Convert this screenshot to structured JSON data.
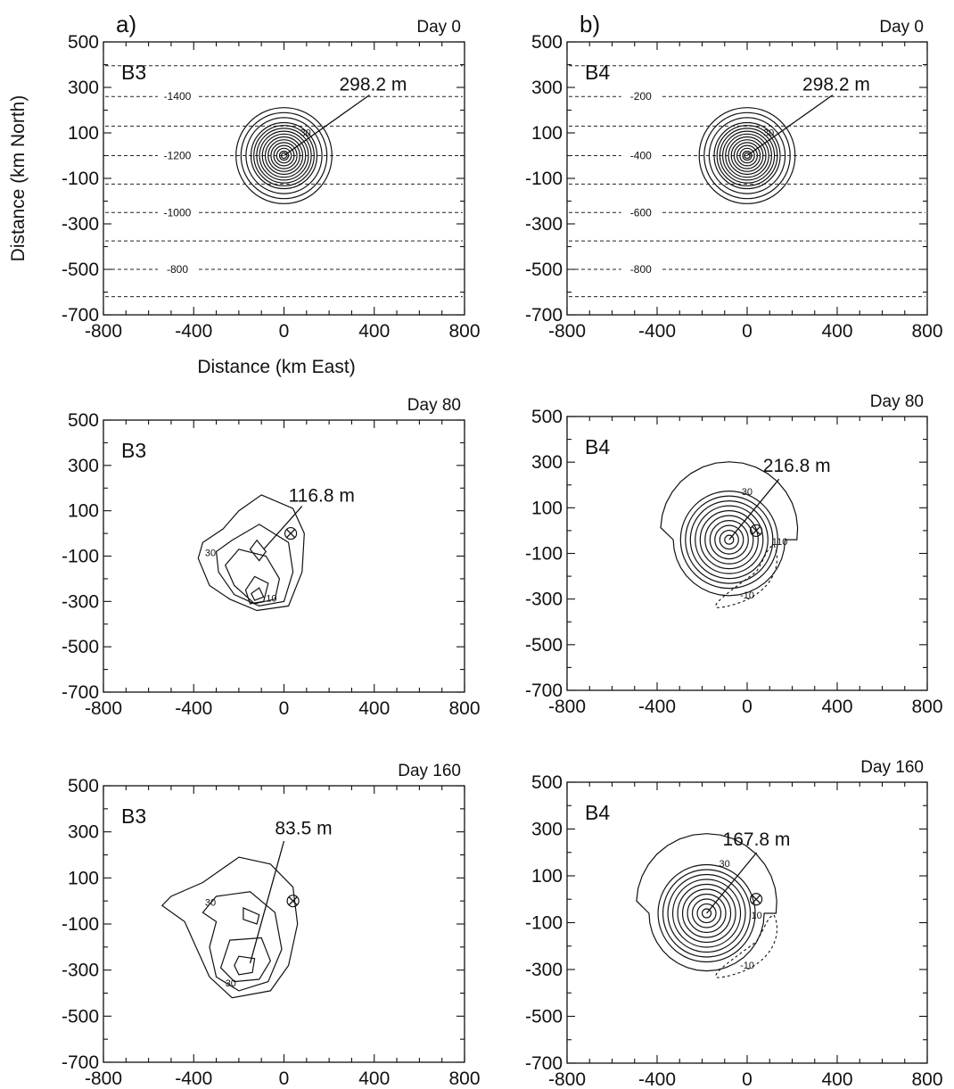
{
  "figure": {
    "column_tags": [
      "a)",
      "b)"
    ],
    "ylabel": "Distance (km North)",
    "xlabel": "Distance (km East)"
  },
  "chart_data": [
    {
      "type": "contour",
      "experiment": "B3",
      "day": "Day 0",
      "xlim": [
        -800,
        800
      ],
      "ylim": [
        -700,
        500
      ],
      "x_ticks": [
        -800,
        -400,
        0,
        400,
        800
      ],
      "y_ticks": [
        500,
        300,
        100,
        -100,
        -300,
        -500,
        -700
      ],
      "annotation": "298.2 m",
      "center": [
        0,
        0
      ],
      "topography_levels": [
        {
          "label": "-1400",
          "y": 260
        },
        {
          "label": "-1200",
          "y": 0
        },
        {
          "label": "-1000",
          "y": -250
        },
        {
          "label": "-800",
          "y": -500
        }
      ],
      "contour_label": "30"
    },
    {
      "type": "contour",
      "experiment": "B4",
      "day": "Day 0",
      "xlim": [
        -800,
        800
      ],
      "ylim": [
        -700,
        500
      ],
      "x_ticks": [
        -800,
        -400,
        0,
        400,
        800
      ],
      "y_ticks": [
        500,
        300,
        100,
        -100,
        -300,
        -500,
        -700
      ],
      "annotation": "298.2 m",
      "center": [
        0,
        0
      ],
      "topography_levels": [
        {
          "label": "-200",
          "y": 260
        },
        {
          "label": "-400",
          "y": 0
        },
        {
          "label": "-600",
          "y": -250
        },
        {
          "label": "-800",
          "y": -500
        }
      ],
      "contour_label": "30"
    },
    {
      "type": "contour",
      "experiment": "B3",
      "day": "Day 80",
      "xlim": [
        -800,
        800
      ],
      "ylim": [
        -700,
        500
      ],
      "x_ticks": [
        -800,
        -400,
        0,
        400,
        800
      ],
      "y_ticks": [
        500,
        300,
        100,
        -100,
        -300,
        -500,
        -700
      ],
      "annotation": "116.8 m",
      "maximum_location": [
        -120,
        -270
      ],
      "origin_marker": [
        30,
        0
      ],
      "contour_labels": [
        "30",
        "10"
      ]
    },
    {
      "type": "contour",
      "experiment": "B4",
      "day": "Day 80",
      "xlim": [
        -800,
        800
      ],
      "ylim": [
        -700,
        500
      ],
      "x_ticks": [
        -800,
        -400,
        0,
        400,
        800
      ],
      "y_ticks": [
        500,
        300,
        100,
        -100,
        -300,
        -500,
        -700
      ],
      "annotation": "216.8 m",
      "center": [
        -80,
        -40
      ],
      "origin_marker": [
        40,
        0
      ],
      "contour_labels": [
        "30",
        "110",
        "-10"
      ]
    },
    {
      "type": "contour",
      "experiment": "B3",
      "day": "Day 160",
      "xlim": [
        -800,
        800
      ],
      "ylim": [
        -700,
        500
      ],
      "x_ticks": [
        -800,
        -400,
        0,
        400,
        800
      ],
      "y_ticks": [
        500,
        300,
        100,
        -100,
        -300,
        -500,
        -700
      ],
      "annotation": "83.5 m",
      "maximum_location": [
        -150,
        -270
      ],
      "origin_marker": [
        40,
        0
      ],
      "contour_labels": [
        "30",
        "30"
      ]
    },
    {
      "type": "contour",
      "experiment": "B4",
      "day": "Day 160",
      "xlim": [
        -800,
        800
      ],
      "ylim": [
        -700,
        500
      ],
      "x_ticks": [
        -800,
        -400,
        0,
        400,
        800
      ],
      "y_ticks": [
        500,
        300,
        100,
        -100,
        -300,
        -500,
        -700
      ],
      "annotation": "167.8 m",
      "center": [
        -180,
        -60
      ],
      "origin_marker": [
        40,
        0
      ],
      "contour_labels": [
        "30",
        "10",
        "-10"
      ]
    }
  ]
}
